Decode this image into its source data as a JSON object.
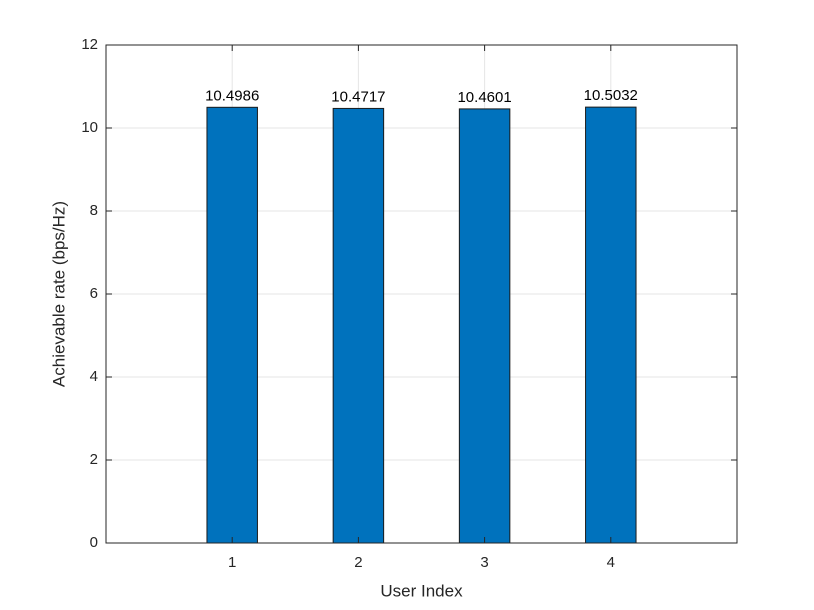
{
  "chart_data": {
    "type": "bar",
    "x_label": "User Index",
    "y_label": "Achievable rate (bps/Hz)",
    "x": [
      1,
      2,
      3,
      4
    ],
    "values": [
      10.4986,
      10.4717,
      10.4601,
      10.5032
    ],
    "color": "#0072bd",
    "xlim": [
      0,
      5
    ],
    "xticks": [
      1,
      2,
      3,
      4
    ],
    "ylim": [
      0,
      12
    ],
    "yticks": [
      0,
      2,
      4,
      6,
      8,
      10,
      12
    ],
    "grid": true
  }
}
